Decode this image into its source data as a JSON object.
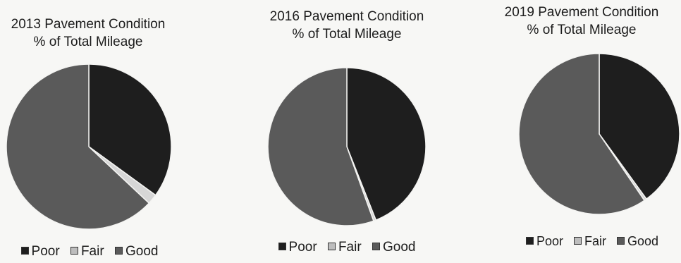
{
  "chart_data": [
    {
      "type": "pie",
      "title": "2013 Pavement Condition",
      "subtitle": "% of Total Mileage",
      "categories": [
        "Poor",
        "Fair",
        "Good"
      ],
      "values": [
        35,
        2,
        63
      ],
      "colors": [
        "#1e1e1e",
        "#d6d6d6",
        "#5a5a5a"
      ],
      "legend": "bottom"
    },
    {
      "type": "pie",
      "title": "2016 Pavement Condition",
      "subtitle": "% of Total Mileage",
      "categories": [
        "Poor",
        "Fair",
        "Good"
      ],
      "values": [
        44,
        0.5,
        55.5
      ],
      "colors": [
        "#1e1e1e",
        "#d6d6d6",
        "#5a5a5a"
      ],
      "legend": "bottom"
    },
    {
      "type": "pie",
      "title": "2019 Pavement Condition",
      "subtitle": "% of Total Mileage",
      "categories": [
        "Poor",
        "Fair",
        "Good"
      ],
      "values": [
        40,
        0.5,
        59.5
      ],
      "colors": [
        "#1e1e1e",
        "#d6d6d6",
        "#5a5a5a"
      ],
      "legend": "bottom"
    }
  ]
}
